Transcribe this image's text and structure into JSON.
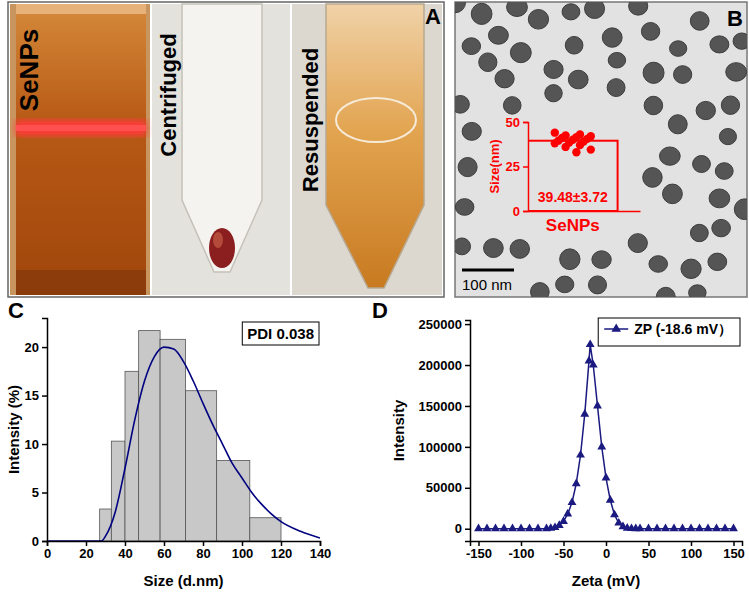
{
  "figure": {
    "panel_labels": [
      "A",
      "B",
      "C",
      "D"
    ],
    "photo_labels": [
      "SeNPs",
      "Centrifuged",
      "Resuspended"
    ],
    "scale_bar": "100 nm"
  },
  "chart_data": [
    {
      "type": "bar",
      "categories": [
        "SeNPs"
      ],
      "values": [
        39.48
      ],
      "value_labels": [
        "39.48±3.72"
      ],
      "data_labels": true,
      "points": [
        44,
        43,
        42.5,
        42,
        41.5,
        41,
        40.5,
        40,
        39.5,
        39,
        38.5,
        38,
        37,
        36,
        34.5,
        33
      ],
      "marker": "circle",
      "ylabel": "Size(nm)",
      "ylim": [
        0,
        50
      ],
      "yticks": [
        0,
        25,
        50
      ],
      "color": "#ff0000"
    },
    {
      "type": "histogram",
      "bins": [
        27,
        33,
        40,
        47,
        58,
        71,
        87,
        104,
        120
      ],
      "values": [
        3.3,
        10.3,
        17.5,
        21.7,
        20.8,
        15.5,
        8.3,
        2.4
      ],
      "color": "#c8c8c8",
      "curve": {
        "x": [
          0,
          10,
          20,
          25,
          28,
          30,
          35,
          40,
          45,
          50,
          55,
          60,
          65,
          70,
          75,
          80,
          85,
          90,
          95,
          100,
          105,
          110,
          115,
          120,
          130,
          140
        ],
        "values": [
          0,
          0,
          0,
          0,
          0,
          0.5,
          3,
          7.5,
          12.5,
          16.5,
          19,
          20,
          19.8,
          18.5,
          16.5,
          14.2,
          12,
          10,
          8,
          6.5,
          5,
          3.8,
          2.8,
          2,
          1,
          0.3
        ],
        "color": "#000080"
      },
      "annotation": "PDI 0.038",
      "xlabel": "Size (d.nm)",
      "ylabel": "Intensity (%)",
      "xlim": [
        0,
        140
      ],
      "xticks": [
        0,
        20,
        40,
        60,
        80,
        100,
        120,
        140
      ],
      "ylim": [
        0,
        23
      ],
      "yticks": [
        0,
        5,
        10,
        15,
        20
      ]
    },
    {
      "type": "line",
      "x": [
        -150,
        -140,
        -130,
        -120,
        -110,
        -100,
        -90,
        -80,
        -70,
        -65,
        -60,
        -55,
        -50,
        -45,
        -40,
        -35,
        -30,
        -25,
        -20,
        -18.6,
        -15,
        -10,
        -5,
        0,
        5,
        10,
        15,
        20,
        25,
        30,
        35,
        40,
        50,
        60,
        70,
        80,
        90,
        100,
        110,
        120,
        130,
        140,
        150
      ],
      "series": [
        {
          "name": "ZP (-18.6 mV）",
          "color": "#1a1a80",
          "marker": "triangle",
          "values": [
            0,
            0,
            0,
            0,
            0,
            0,
            0,
            0,
            0,
            500,
            1500,
            4000,
            9000,
            18000,
            32000,
            55000,
            90000,
            140000,
            205000,
            225000,
            200000,
            150000,
            100000,
            62000,
            35000,
            17000,
            7000,
            2500,
            800,
            200,
            0,
            0,
            0,
            0,
            0,
            0,
            0,
            0,
            0,
            0,
            0,
            0,
            0
          ]
        }
      ],
      "legend": "top right",
      "xlabel": "Zeta (mV)",
      "ylabel": "Intensity",
      "xlim": [
        -160,
        160
      ],
      "xticks": [
        -150,
        -100,
        -50,
        0,
        50,
        100,
        150
      ],
      "ylim": [
        -15000,
        255000
      ],
      "yticks": [
        0,
        50000,
        100000,
        150000,
        200000,
        250000
      ]
    }
  ]
}
